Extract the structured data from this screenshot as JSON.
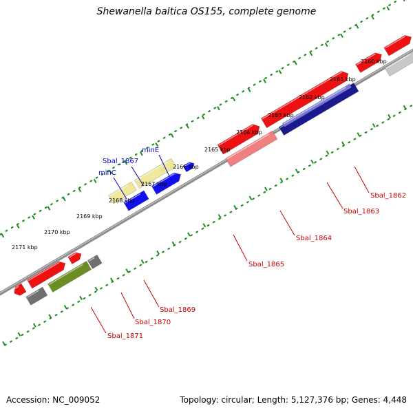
{
  "title": "Shewanella baltica OS155, complete genome",
  "footer": {
    "accession": "Accession: NC_009052",
    "topology": "Topology: circular; Length: 5,127,376 bp; Genes: 4,448"
  },
  "colors": {
    "backbone": "#8c8c8c",
    "ruler": "#1e8c1e",
    "label_forward": "#0000cc",
    "label_reverse": "#cc0000",
    "red": "#ee1111",
    "blue": "#1111ee",
    "pale_yellow": "#efe89a",
    "pale_red": "#f08080",
    "gray": "#c8c8c8",
    "dark_gray": "#707070",
    "olive_green": "#6b8e23",
    "navy": "#1a1a8c",
    "lavender": "#7878d8",
    "khaki": "#bdb76b",
    "dark_navy": "#0a0a5a"
  },
  "ticks": [
    {
      "label": "2160 kbp"
    },
    {
      "label": "2161 kbp"
    },
    {
      "label": "2162 kbp"
    },
    {
      "label": "2163 kbp"
    },
    {
      "label": "2164 kbp"
    },
    {
      "label": "2165 kbp"
    },
    {
      "label": "2166 kbp"
    },
    {
      "label": "2167 kbp"
    },
    {
      "label": "2168 kbp"
    },
    {
      "label": "2169 kbp"
    },
    {
      "label": "2170 kbp"
    },
    {
      "label": "2171 kbp"
    }
  ],
  "gene_labels": [
    {
      "text": "Sbal_1862",
      "strand": "reverse"
    },
    {
      "text": "Sbal_1863",
      "strand": "reverse"
    },
    {
      "text": "Sbal_1864",
      "strand": "reverse"
    },
    {
      "text": "Sbal_1865",
      "strand": "reverse"
    },
    {
      "text": "Sbal_1869",
      "strand": "reverse"
    },
    {
      "text": "Sbal_1870",
      "strand": "reverse"
    },
    {
      "text": "Sbal_1871",
      "strand": "reverse"
    },
    {
      "text": "minE",
      "strand": "forward"
    },
    {
      "text": "Sbal_1867",
      "strand": "forward"
    },
    {
      "text": "minC",
      "strand": "forward"
    }
  ]
}
